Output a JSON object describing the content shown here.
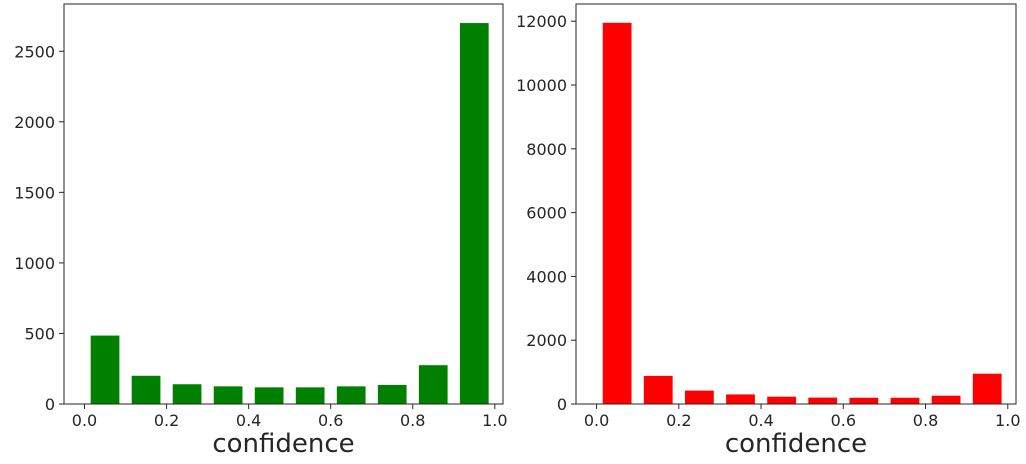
{
  "chart_data": [
    {
      "type": "bar",
      "title": "",
      "xlabel": "confidence",
      "ylabel": "",
      "color": "#008000",
      "bin_width": 0.07,
      "bin_centers": [
        0.05,
        0.15,
        0.25,
        0.35,
        0.45,
        0.55,
        0.65,
        0.75,
        0.85,
        0.95
      ],
      "values": [
        485,
        200,
        140,
        125,
        118,
        118,
        125,
        135,
        275,
        2700
      ],
      "xlim": [
        -0.05,
        1.02
      ],
      "ylim": [
        0,
        2835
      ],
      "xticks": [
        0.0,
        0.2,
        0.4,
        0.6,
        0.8,
        1.0
      ],
      "xtick_labels": [
        "0.0",
        "0.2",
        "0.4",
        "0.6",
        "0.8",
        "1.0"
      ],
      "yticks": [
        0,
        500,
        1000,
        1500,
        2000,
        2500
      ],
      "ytick_labels": [
        "0",
        "500",
        "1000",
        "1500",
        "2000",
        "2500"
      ],
      "grid": false,
      "legend": "none"
    },
    {
      "type": "bar",
      "title": "",
      "xlabel": "confidence",
      "ylabel": "",
      "color": "#ff0000",
      "bin_width": 0.07,
      "bin_centers": [
        0.05,
        0.15,
        0.25,
        0.35,
        0.45,
        0.55,
        0.65,
        0.75,
        0.85,
        0.95
      ],
      "values": [
        11950,
        880,
        420,
        300,
        230,
        200,
        195,
        195,
        260,
        950
      ],
      "xlim": [
        -0.05,
        1.02
      ],
      "ylim": [
        0,
        12540
      ],
      "xticks": [
        0.0,
        0.2,
        0.4,
        0.6,
        0.8,
        1.0
      ],
      "xtick_labels": [
        "0.0",
        "0.2",
        "0.4",
        "0.6",
        "0.8",
        "1.0"
      ],
      "yticks": [
        0,
        2000,
        4000,
        6000,
        8000,
        10000,
        12000
      ],
      "ytick_labels": [
        "0",
        "2000",
        "4000",
        "6000",
        "8000",
        "10000",
        "12000"
      ],
      "grid": false,
      "legend": "none"
    }
  ]
}
